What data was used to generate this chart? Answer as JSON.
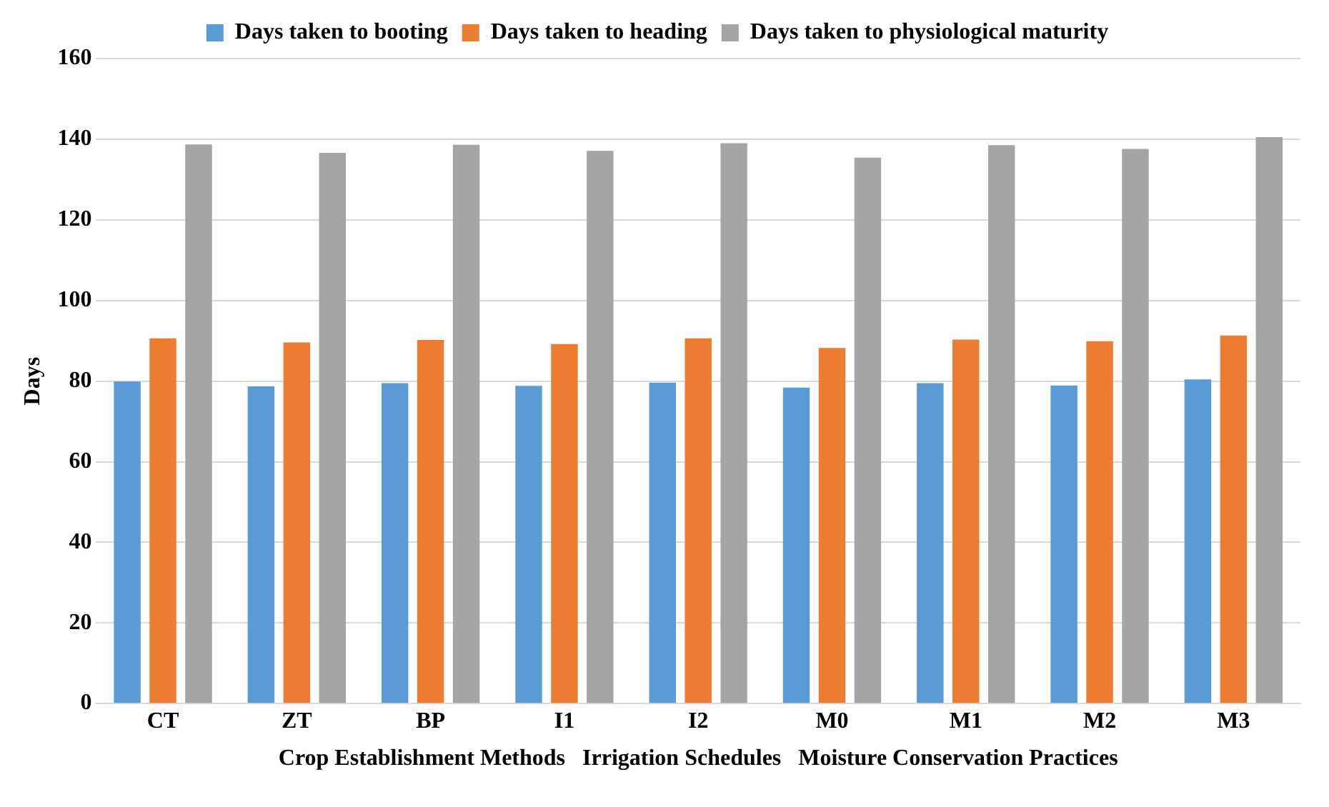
{
  "chart_data": {
    "type": "bar",
    "ylabel": "Days",
    "xlabel": "Crop Establishment Methods   Irrigation Schedules   Moisture Conservation Practices",
    "categories": [
      "CT",
      "ZT",
      "BP",
      "I1",
      "I2",
      "M0",
      "M1",
      "M2",
      "M3"
    ],
    "series": [
      {
        "name": "Days taken to booting",
        "color": "#5b9bd5",
        "values": [
          79.9,
          78.7,
          79.5,
          78.8,
          79.6,
          78.4,
          79.5,
          78.9,
          80.4
        ]
      },
      {
        "name": "Days taken to heading",
        "color": "#ed7d31",
        "values": [
          90.6,
          89.6,
          90.2,
          89.2,
          90.6,
          88.2,
          90.3,
          89.9,
          91.3
        ]
      },
      {
        "name": "Days taken to physiological maturity",
        "color": "#a5a5a5",
        "values": [
          138.7,
          136.6,
          138.6,
          137.1,
          139.0,
          135.4,
          138.5,
          137.6,
          140.5
        ]
      }
    ],
    "ylim": [
      0,
      160
    ],
    "yticks": [
      0,
      20,
      40,
      60,
      80,
      100,
      120,
      140,
      160
    ],
    "grid": "y",
    "legend": "top"
  }
}
